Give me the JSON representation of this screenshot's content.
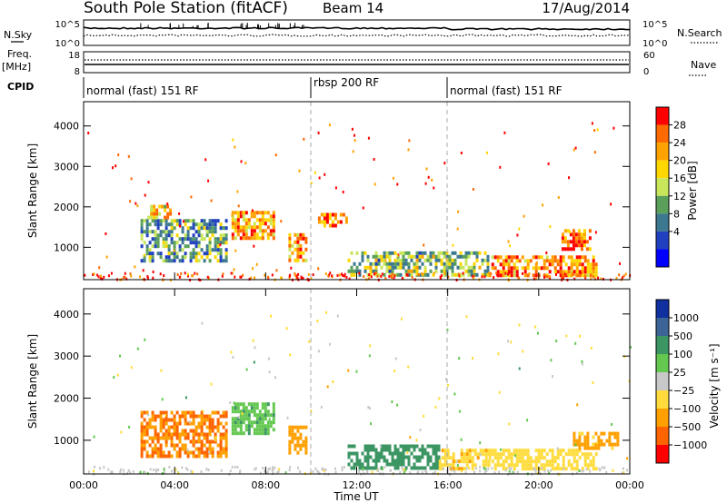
{
  "header": {
    "station": "South Pole Station (fitACF)",
    "beam": "Beam 14",
    "date": "17/Aug/2014"
  },
  "top_panels": {
    "nsky_label": "N.Sky",
    "nsky_ticks": [
      "10^5",
      "10^0"
    ],
    "nsearch_label": "N.Search",
    "nsearch_ticks": [
      "10^5",
      "10^0"
    ],
    "freq_label": "Freq.",
    "freq_unit": "[MHz]",
    "freq_ticks": [
      "18",
      "8"
    ],
    "nave_label": "Nave",
    "nave_ticks": [
      "60",
      "0"
    ],
    "cpid_label": "CPID",
    "cpid_segments": [
      {
        "label": "normal (fast) 151 RF",
        "start_h": 0,
        "end_h": 10
      },
      {
        "label": "rbsp 200 RF",
        "start_h": 10,
        "end_h": 16
      },
      {
        "label": "normal (fast) 151 RF",
        "start_h": 16,
        "end_h": 24
      }
    ]
  },
  "power_colorbar": {
    "label": "Power [dB]",
    "ticks": [
      "28",
      "24",
      "20",
      "16",
      "12",
      "8",
      "4"
    ],
    "colors": [
      "#ff0000",
      "#ff6a00",
      "#ffa200",
      "#ffd700",
      "#c8e65a",
      "#5aa05a",
      "#3c7890",
      "#2040c0",
      "#0000ff"
    ]
  },
  "velocity_colorbar": {
    "label": "Velocity [m s⁻¹]",
    "ticks": [
      "1000",
      "500",
      "100",
      "25",
      "−25",
      "−100",
      "−500",
      "−1000"
    ],
    "colors": [
      "#1030a0",
      "#3c6496",
      "#3c9664",
      "#64c850",
      "#c8c8c8",
      "#ffdc3c",
      "#ffa000",
      "#ff6400",
      "#ff0000"
    ]
  },
  "chart_data": [
    {
      "type": "heatmap",
      "name": "power",
      "ylabel": "Slant Range [km]",
      "xlim": [
        0,
        24
      ],
      "ylim": [
        200,
        4600
      ],
      "yticks": [
        1000,
        2000,
        3000,
        4000
      ],
      "xticks": [
        0,
        4,
        8,
        12,
        16,
        20,
        24
      ],
      "xticklabels": [
        "00:00",
        "04:00",
        "08:00",
        "12:00",
        "16:00",
        "20:00",
        "00:00"
      ],
      "cpid_change_hours": [
        10,
        16
      ],
      "echo_regions": [
        {
          "t0": 2.5,
          "t1": 6.3,
          "r0": 650,
          "r1": 1700,
          "level": 0.65
        },
        {
          "t0": 2.8,
          "t1": 3.8,
          "r0": 1700,
          "r1": 2050,
          "level": 0.3
        },
        {
          "t0": 6.5,
          "t1": 8.4,
          "r0": 1200,
          "r1": 1900,
          "level": 0.25
        },
        {
          "t0": 9.0,
          "t1": 9.8,
          "r0": 700,
          "r1": 1350,
          "level": 0.25
        },
        {
          "t0": 10.3,
          "t1": 11.5,
          "r0": 1500,
          "r1": 1850,
          "level": 0.15
        },
        {
          "t0": 11.6,
          "t1": 17.8,
          "r0": 350,
          "r1": 900,
          "level": 0.55
        },
        {
          "t0": 17.8,
          "t1": 22.5,
          "r0": 350,
          "r1": 800,
          "level": 0.2
        },
        {
          "t0": 21.0,
          "t1": 22.2,
          "r0": 950,
          "r1": 1450,
          "level": 0.15
        }
      ]
    },
    {
      "type": "heatmap",
      "name": "velocity",
      "ylabel": "Slant Range [km]",
      "xlabel": "Time UT",
      "xlim": [
        0,
        24
      ],
      "ylim": [
        200,
        4600
      ],
      "yticks": [
        1000,
        2000,
        3000,
        4000
      ],
      "xticks": [
        0,
        4,
        8,
        12,
        16,
        20,
        24
      ],
      "xticklabels": [
        "00:00",
        "04:00",
        "08:00",
        "12:00",
        "16:00",
        "20:00",
        "00:00"
      ],
      "cpid_change_hours": [
        10,
        16
      ],
      "echo_regions": [
        {
          "t0": 2.5,
          "t1": 6.3,
          "r0": 650,
          "r1": 1700,
          "velocity": -500
        },
        {
          "t0": 6.5,
          "t1": 8.4,
          "r0": 1200,
          "r1": 1900,
          "velocity": 80
        },
        {
          "t0": 9.0,
          "t1": 9.8,
          "r0": 700,
          "r1": 1350,
          "velocity": -300
        },
        {
          "t0": 11.6,
          "t1": 15.6,
          "r0": 350,
          "r1": 900,
          "velocity": 300
        },
        {
          "t0": 15.6,
          "t1": 17.8,
          "r0": 350,
          "r1": 800,
          "velocity": -80
        },
        {
          "t0": 17.8,
          "t1": 22.5,
          "r0": 350,
          "r1": 800,
          "velocity": -60
        },
        {
          "t0": 21.5,
          "t1": 23.5,
          "r0": 800,
          "r1": 1200,
          "velocity": -150
        }
      ]
    }
  ]
}
